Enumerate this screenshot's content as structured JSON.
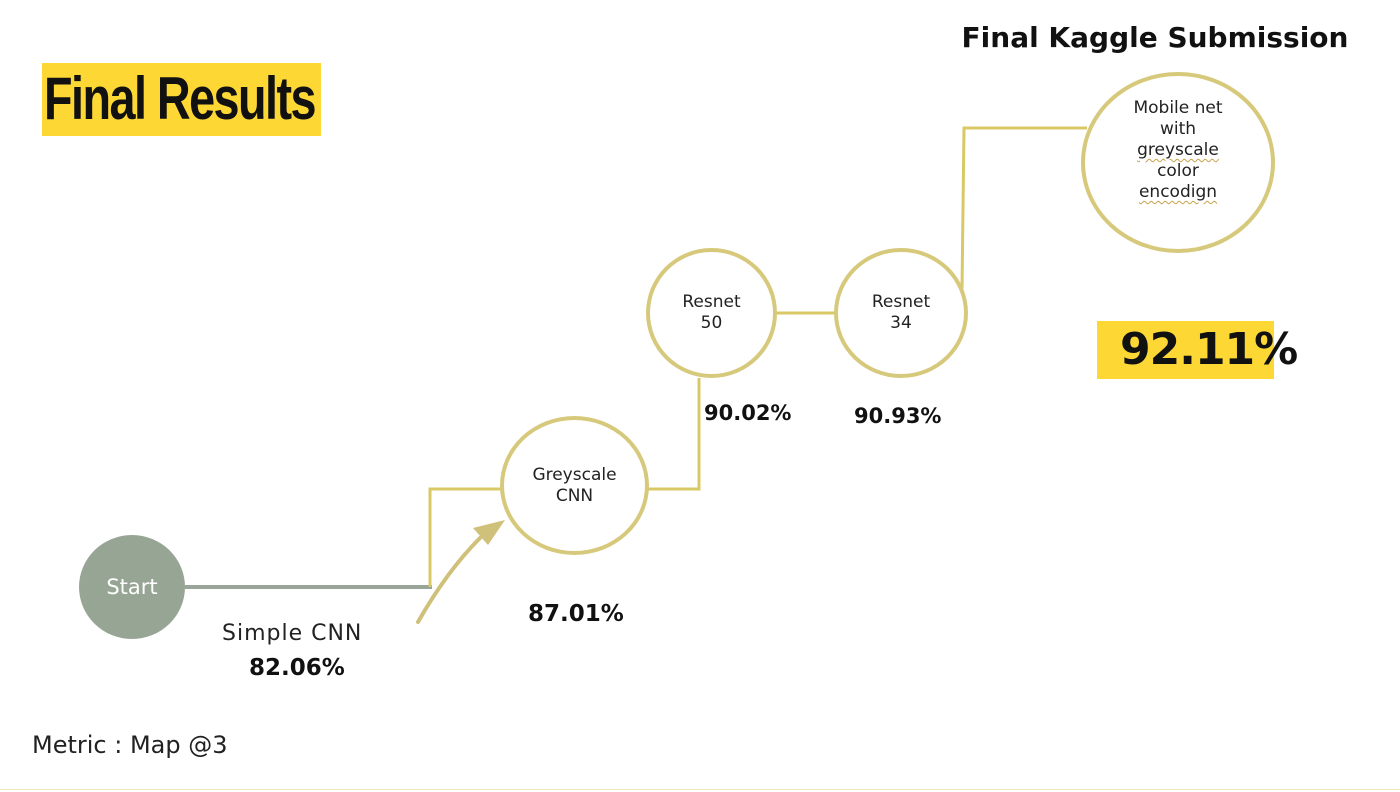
{
  "title": "Final Results",
  "kaggle_title": "Final Kaggle Submission",
  "colors": {
    "accent_yellow": "#fdd835",
    "circle_border": "#d7c97b",
    "connector": "#d8c866",
    "start_fill": "#97a594",
    "start_connector": "#9aa59a",
    "arrow": "#cfc07a"
  },
  "nodes": {
    "start": {
      "label": "Start"
    },
    "greyscale_cnn": {
      "lines": [
        "Greyscale",
        "CNN"
      ]
    },
    "resnet50": {
      "lines": [
        "Resnet",
        "50"
      ]
    },
    "resnet34": {
      "lines": [
        "Resnet",
        "34"
      ]
    },
    "mobilenet": {
      "lines": [
        "Mobile net",
        "with",
        "greyscale",
        "color",
        "encodign"
      ]
    }
  },
  "results": {
    "simple_cnn_label": "Simple CNN",
    "simple_cnn": "82.06%",
    "greyscale_cnn": "87.01%",
    "resnet50": "90.02%",
    "resnet34": "90.93%",
    "final": "92.11%"
  },
  "metric": "Metric : Map @3"
}
